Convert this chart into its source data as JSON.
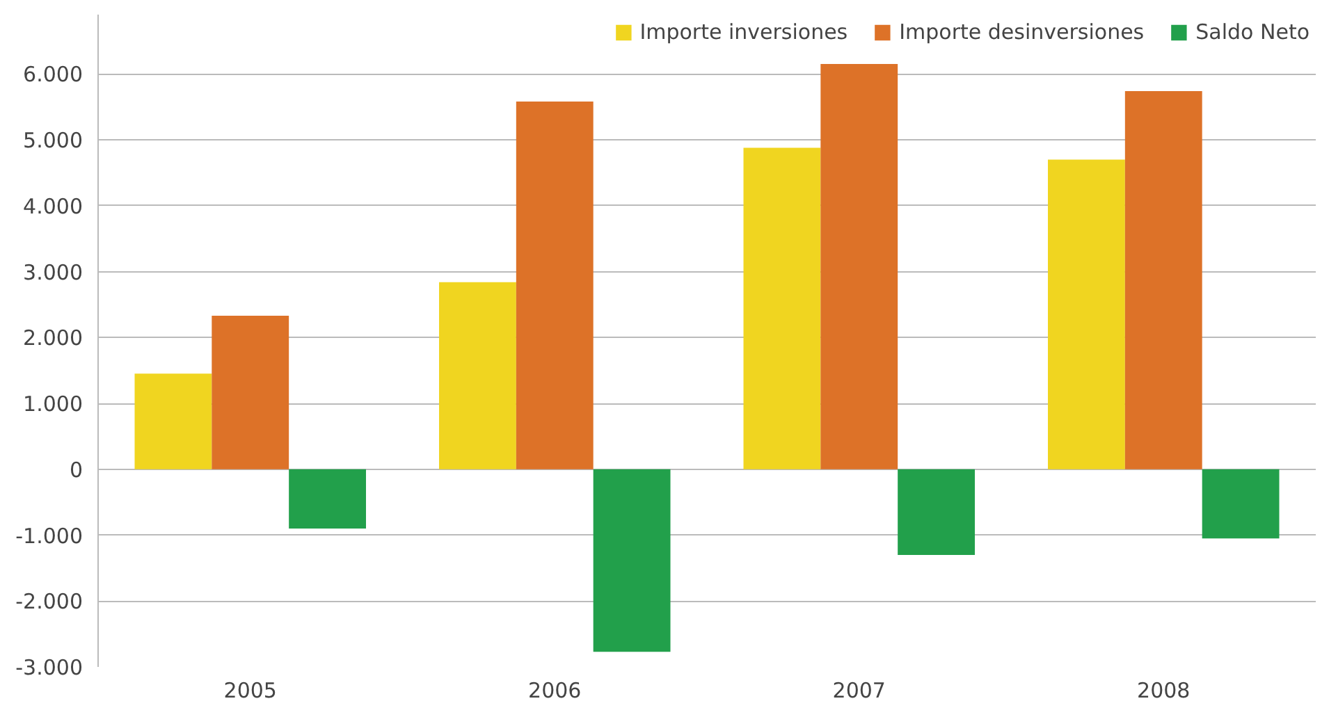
{
  "chart_data": {
    "type": "bar",
    "categories": [
      "2005",
      "2006",
      "2007",
      "2008"
    ],
    "series": [
      {
        "name": "Importe inversiones",
        "color": "#f0d520",
        "values": [
          1450,
          2840,
          4880,
          4700
        ]
      },
      {
        "name": "Importe desinversiones",
        "color": "#dd7228",
        "values": [
          2330,
          5580,
          6150,
          5740
        ]
      },
      {
        "name": "Saldo Neto",
        "color": "#22a04b",
        "values": [
          -900,
          -2770,
          -1300,
          -1050
        ]
      }
    ],
    "ylim": [
      -3000,
      6900
    ],
    "yticks": [
      {
        "value": -3000,
        "label": "-3.000"
      },
      {
        "value": -2000,
        "label": "-2.000"
      },
      {
        "value": -1000,
        "label": "-1.000"
      },
      0,
      {
        "value": 1000,
        "label": "1.000"
      },
      {
        "value": 2000,
        "label": "2.000"
      },
      {
        "value": 3000,
        "label": "3.000"
      },
      {
        "value": 4000,
        "label": "4.000"
      },
      {
        "value": 5000,
        "label": "5.000"
      },
      {
        "value": 6000,
        "label": "6.000"
      }
    ],
    "grid": "y",
    "legend": "top right"
  }
}
